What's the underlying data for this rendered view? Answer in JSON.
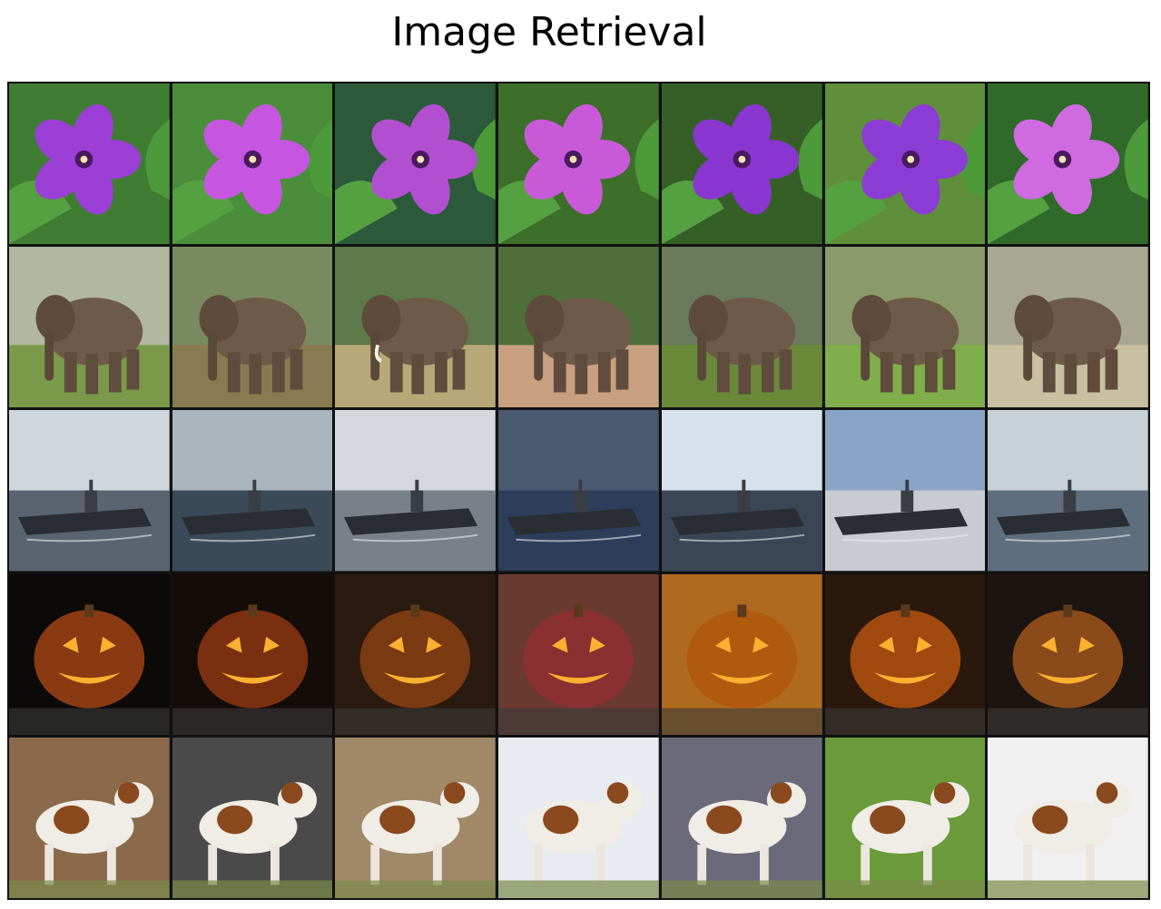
{
  "title": "Image Retrieval",
  "grid": {
    "rows": [
      {
        "category": "purple-flower",
        "count": 7
      },
      {
        "category": "elephant",
        "count": 7
      },
      {
        "category": "aircraft-carrier",
        "count": 7
      },
      {
        "category": "jack-o-lantern",
        "count": 7
      },
      {
        "category": "dog",
        "count": 7
      }
    ]
  },
  "colors": {
    "flower_petal": "#9b3fd6",
    "leaf": "#2f7a2a",
    "elephant": "#6e5a48",
    "grass": "#6f9a3c",
    "sea": "#3a4a5e",
    "sky": "#b8c4cf",
    "pumpkin_glow": "#ffb030",
    "pumpkin_dark": "#1a0e08",
    "dog_brown": "#8a4a1e"
  }
}
